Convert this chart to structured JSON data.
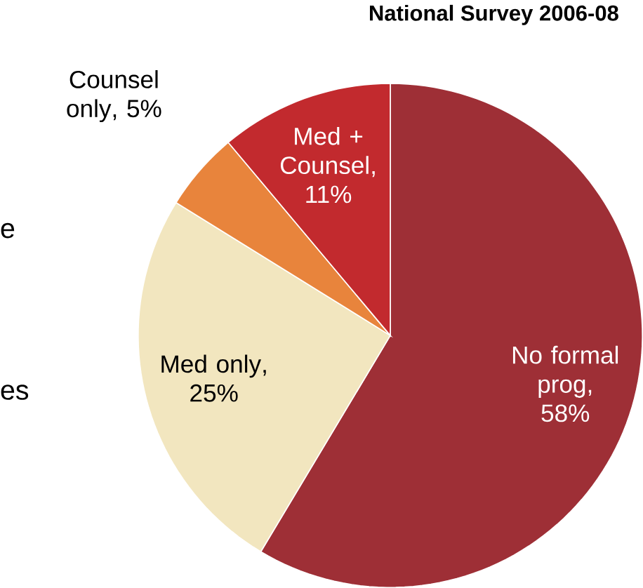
{
  "chart_data": {
    "type": "pie",
    "title": "National Survey 2006-08",
    "categories": [
      "No formal prog",
      "Med only",
      "Counsel only",
      "Med + Counsel"
    ],
    "values": [
      58,
      25,
      5,
      11
    ],
    "value_labels": [
      ", 58%",
      ", 25%",
      ", 5%",
      ", 11%"
    ],
    "colors": [
      "#9e2f36",
      "#f2e6bf",
      "#e8843c",
      "#c22a2e"
    ],
    "annotations": [
      "e",
      "es"
    ]
  }
}
